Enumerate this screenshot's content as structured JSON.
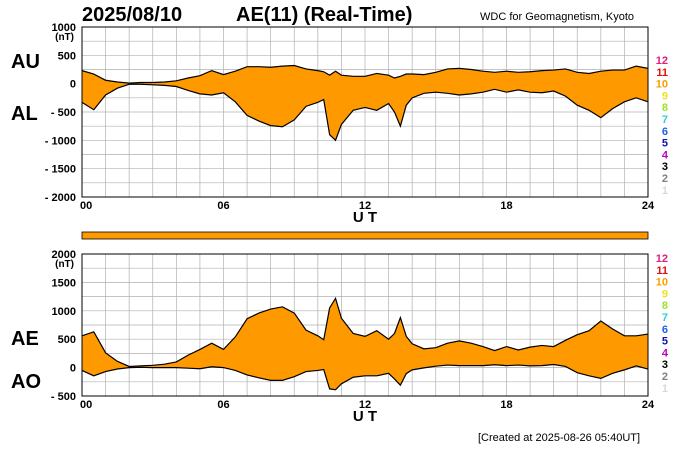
{
  "header": {
    "date": "2025/08/10",
    "title": "AE(11) (Real-Time)",
    "organization": "WDC for Geomagnetism, Kyoto"
  },
  "footer": {
    "created": "[Created at 2025-08-26 05:40UT]"
  },
  "scale_labels": [
    {
      "text": "12",
      "color": "#e0207a"
    },
    {
      "text": "11",
      "color": "#e01010"
    },
    {
      "text": "10",
      "color": "#f5a000"
    },
    {
      "text": "9",
      "color": "#f0e020"
    },
    {
      "text": "8",
      "color": "#a0e030"
    },
    {
      "text": "7",
      "color": "#30d0d0"
    },
    {
      "text": "6",
      "color": "#2060e0"
    },
    {
      "text": "5",
      "color": "#1010b0"
    },
    {
      "text": "4",
      "color": "#c000c0"
    },
    {
      "text": "3",
      "color": "#000000"
    },
    {
      "text": "2",
      "color": "#808080"
    },
    {
      "text": "1",
      "color": "#d8d8d8"
    }
  ],
  "colors": {
    "fill": "#ff9900",
    "band": "#ff9900",
    "grid": "#b0b0b0",
    "line": "#000000"
  },
  "chart_data": [
    {
      "type": "area",
      "title": "",
      "xlabel": "U T",
      "ylabel": "(nT)",
      "xlim": [
        0,
        24
      ],
      "ylim": [
        -2000,
        1000
      ],
      "xticks": [
        "00",
        "06",
        "12",
        "18",
        "24"
      ],
      "yticks": [
        "1000",
        "500",
        "0",
        "- 500",
        "- 1000",
        "- 1500",
        "- 2000"
      ],
      "ytick_values": [
        1000,
        500,
        0,
        -500,
        -1000,
        -1500,
        -2000
      ],
      "grid": true,
      "upper_label": "AU",
      "lower_label": "AL",
      "x": [
        0,
        0.5,
        1,
        1.5,
        2,
        2.5,
        3,
        3.5,
        4,
        4.5,
        5,
        5.5,
        6,
        6.5,
        7,
        7.5,
        8,
        8.5,
        9,
        9.5,
        10,
        10.25,
        10.5,
        10.75,
        11,
        11.5,
        12,
        12.5,
        13,
        13.25,
        13.5,
        13.75,
        14,
        14.5,
        15,
        15.5,
        16,
        16.5,
        17,
        17.5,
        18,
        18.5,
        19,
        19.5,
        20,
        20.5,
        21,
        21.5,
        22,
        22.5,
        23,
        23.5,
        24
      ],
      "series": [
        {
          "name": "AU",
          "values": [
            230,
            170,
            60,
            30,
            10,
            20,
            20,
            30,
            50,
            100,
            140,
            230,
            160,
            220,
            300,
            300,
            290,
            310,
            320,
            260,
            230,
            210,
            150,
            220,
            150,
            130,
            130,
            180,
            150,
            100,
            130,
            170,
            170,
            160,
            200,
            260,
            270,
            250,
            220,
            200,
            220,
            200,
            210,
            230,
            240,
            260,
            200,
            180,
            220,
            240,
            240,
            310,
            270
          ]
        },
        {
          "name": "AL",
          "values": [
            -330,
            -460,
            -200,
            -80,
            -10,
            -10,
            -20,
            -30,
            -50,
            -120,
            -180,
            -200,
            -160,
            -320,
            -560,
            -660,
            -740,
            -760,
            -640,
            -400,
            -330,
            -280,
            -900,
            -1000,
            -720,
            -470,
            -420,
            -470,
            -350,
            -500,
            -750,
            -380,
            -250,
            -170,
            -150,
            -170,
            -200,
            -180,
            -150,
            -100,
            -150,
            -110,
            -150,
            -160,
            -130,
            -220,
            -380,
            -470,
            -600,
            -440,
            -320,
            -250,
            -320
          ]
        }
      ]
    },
    {
      "type": "area",
      "title": "",
      "xlabel": "U T",
      "ylabel": "(nT)",
      "xlim": [
        0,
        24
      ],
      "ylim": [
        -500,
        2000
      ],
      "xticks": [
        "00",
        "06",
        "12",
        "18",
        "24"
      ],
      "yticks": [
        "2000",
        "1500",
        "1000",
        "500",
        "0",
        "- 500"
      ],
      "ytick_values": [
        2000,
        1500,
        1000,
        500,
        0,
        -500
      ],
      "grid": true,
      "upper_label": "AE",
      "lower_label": "AO",
      "x": [
        0,
        0.5,
        1,
        1.5,
        2,
        2.5,
        3,
        3.5,
        4,
        4.5,
        5,
        5.5,
        6,
        6.5,
        7,
        7.5,
        8,
        8.5,
        9,
        9.5,
        10,
        10.25,
        10.5,
        10.75,
        11,
        11.5,
        12,
        12.5,
        13,
        13.25,
        13.5,
        13.75,
        14,
        14.5,
        15,
        15.5,
        16,
        16.5,
        17,
        17.5,
        18,
        18.5,
        19,
        19.5,
        20,
        20.5,
        21,
        21.5,
        22,
        22.5,
        23,
        23.5,
        24
      ],
      "series": [
        {
          "name": "AE",
          "values": [
            560,
            630,
            260,
            110,
            20,
            30,
            40,
            60,
            100,
            220,
            320,
            430,
            320,
            540,
            860,
            960,
            1030,
            1070,
            960,
            660,
            560,
            490,
            1050,
            1220,
            870,
            600,
            550,
            650,
            500,
            600,
            880,
            550,
            420,
            330,
            350,
            430,
            470,
            430,
            370,
            300,
            370,
            310,
            360,
            390,
            370,
            480,
            580,
            650,
            820,
            680,
            560,
            560,
            590
          ]
        },
        {
          "name": "AO",
          "values": [
            -50,
            -145,
            -70,
            -25,
            0,
            5,
            0,
            0,
            0,
            -10,
            -20,
            15,
            0,
            -50,
            -130,
            -180,
            -225,
            -225,
            -160,
            -70,
            -50,
            -35,
            -375,
            -390,
            -285,
            -170,
            -145,
            -145,
            -100,
            -200,
            -310,
            -105,
            -40,
            -5,
            25,
            45,
            35,
            35,
            35,
            50,
            35,
            45,
            30,
            35,
            55,
            20,
            -90,
            -145,
            -190,
            -100,
            -40,
            30,
            -25
          ]
        }
      ]
    }
  ]
}
